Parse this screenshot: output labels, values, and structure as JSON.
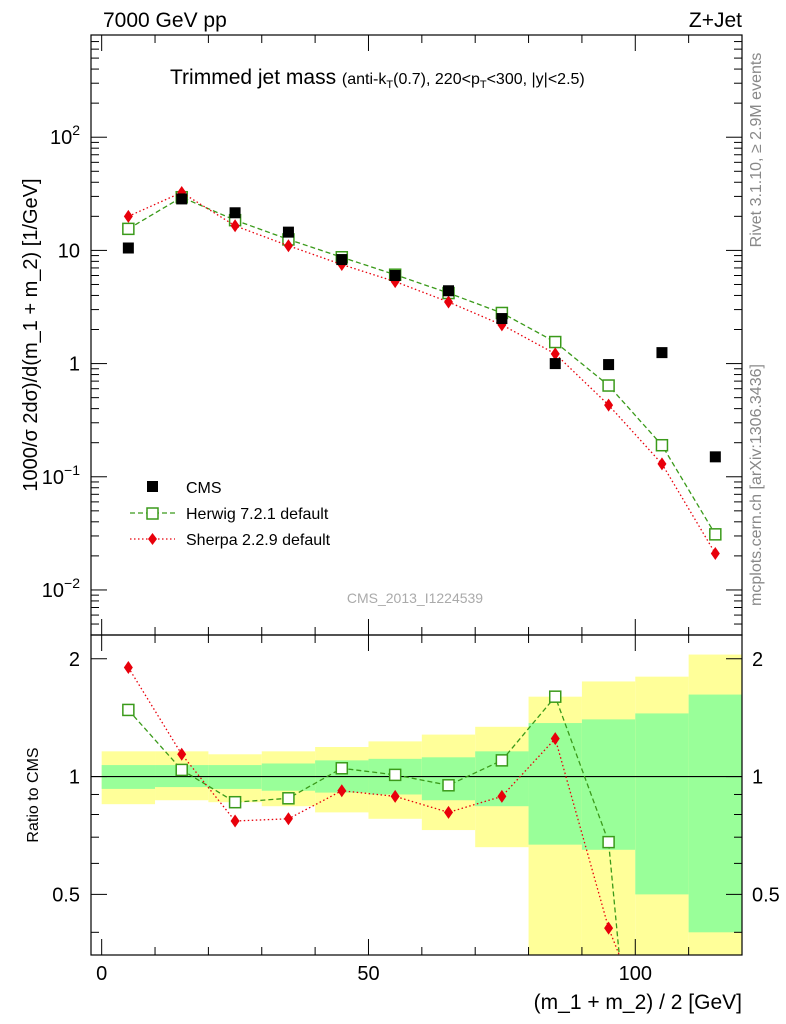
{
  "header": {
    "left": "7000 GeV pp",
    "right": "Z+Jet"
  },
  "side_labels": {
    "rivet": "Rivet 3.1.10, ≥ 2.9M events",
    "mcplots": "mcplots.cern.ch [arXiv:1306.3436]"
  },
  "watermark": "CMS_2013_I1224539",
  "colors": {
    "cms": "#000000",
    "herwig": "#3a9a1a",
    "sherpa": "#e8000b",
    "band_inner": "#99ff99",
    "band_outer": "#ffff99"
  },
  "chart_data": [
    {
      "type": "scatter",
      "title_main": "Trimmed jet mass",
      "title_sub": {
        "pre": "(anti-k",
        "sub1": "T",
        "mid": "(0.7), 220<p",
        "sub2": "T",
        "post": "<300, |y|<2.5)"
      },
      "ylabel": "1000/σ 2dσ)/d(m_1 + m_2) [1/GeV]",
      "yscale": "log",
      "ylim": [
        0.004,
        800
      ],
      "xlim": [
        -2,
        120
      ],
      "ytick_labels": [
        {
          "v": 100,
          "b": "10",
          "e": "2"
        },
        {
          "v": 10,
          "b": "10",
          "e": ""
        },
        {
          "v": 1,
          "b": "1",
          "e": ""
        },
        {
          "v": 0.1,
          "b": "10",
          "e": "−1"
        },
        {
          "v": 0.01,
          "b": "10",
          "e": "−2"
        }
      ],
      "x": [
        5,
        15,
        25,
        35,
        45,
        55,
        65,
        75,
        85,
        95,
        105,
        115
      ],
      "series": [
        {
          "name": "CMS",
          "key": "cms",
          "marker": "square",
          "values": [
            10.5,
            28.5,
            21.5,
            14.5,
            8.3,
            6.0,
            4.4,
            2.5,
            1.0,
            0.98,
            1.25,
            0.15
          ]
        },
        {
          "name": "Herwig 7.2.1 default",
          "key": "herwig",
          "marker": "open-square",
          "line": "dashed",
          "values": [
            15.5,
            29.5,
            18.5,
            12.5,
            8.7,
            6.1,
            4.2,
            2.8,
            1.55,
            0.64,
            0.19,
            0.031
          ]
        },
        {
          "name": "Sherpa 2.2.9 default",
          "key": "sherpa",
          "marker": "diamond",
          "line": "dotted",
          "values": [
            20.0,
            32.5,
            16.5,
            11.0,
            7.5,
            5.3,
            3.5,
            2.2,
            1.22,
            0.43,
            0.13,
            0.021
          ]
        }
      ],
      "legend_position": "bottom-left"
    },
    {
      "type": "scatter",
      "ylabel": "Ratio to CMS",
      "xlabel": "(m_1 + m_2) / 2 [GeV]",
      "xlim": [
        -2,
        120
      ],
      "ylim": [
        0.35,
        2.3
      ],
      "xticks": [
        0,
        50,
        100
      ],
      "yticks": [
        0.5,
        1,
        2
      ],
      "ytick_labels": [
        "0.5",
        "1",
        "2"
      ],
      "reference_line": 1,
      "bands": {
        "edges": [
          0,
          10,
          20,
          30,
          40,
          50,
          60,
          70,
          80,
          90,
          100,
          110,
          120
        ],
        "inner_low": [
          0.93,
          0.94,
          0.93,
          0.92,
          0.91,
          0.9,
          0.87,
          0.84,
          0.67,
          0.65,
          0.5,
          0.4
        ],
        "inner_high": [
          1.07,
          1.07,
          1.07,
          1.08,
          1.1,
          1.11,
          1.12,
          1.16,
          1.37,
          1.4,
          1.45,
          1.62
        ],
        "outer_low": [
          0.85,
          0.87,
          0.86,
          0.84,
          0.81,
          0.78,
          0.73,
          0.66,
          0.35,
          0.35,
          0.35,
          0.35
        ],
        "outer_high": [
          1.16,
          1.16,
          1.14,
          1.16,
          1.19,
          1.23,
          1.28,
          1.34,
          1.6,
          1.75,
          1.8,
          2.05
        ]
      },
      "series": [
        {
          "name": "Herwig 7.2.1 default",
          "key": "herwig",
          "marker": "open-square",
          "line": "dashed",
          "values": [
            1.48,
            1.04,
            0.86,
            0.88,
            1.05,
            1.01,
            0.95,
            1.1,
            1.6,
            0.68,
            null,
            null
          ]
        },
        {
          "name": "Sherpa 2.2.9 default",
          "key": "sherpa",
          "marker": "diamond",
          "line": "dotted",
          "values": [
            1.9,
            1.14,
            0.77,
            0.78,
            0.92,
            0.89,
            0.81,
            0.89,
            1.25,
            0.41,
            null,
            null
          ]
        }
      ],
      "off_scale_end": {
        "x": 97,
        "y": 0.35
      }
    }
  ]
}
